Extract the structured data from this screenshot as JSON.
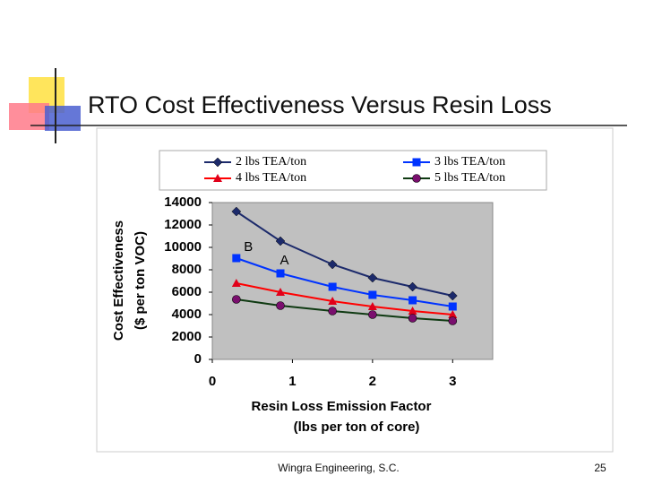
{
  "slide": {
    "title": "RTO Cost Effectiveness Versus Resin Loss",
    "footer": "Wingra Engineering, S.C.",
    "page_number": "25"
  },
  "chart_data": {
    "type": "line",
    "x_label": "Resin Loss Emission Factor",
    "x_label_sub": "(lbs per ton of core)",
    "y_label": "Cost Effectiveness",
    "y_label_sub": "($ per ton VOC)",
    "xlim": [
      0,
      3.5
    ],
    "xticks": [
      0,
      1,
      2,
      3
    ],
    "ylim": [
      0,
      14000
    ],
    "yticks": [
      0,
      2000,
      4000,
      6000,
      8000,
      10000,
      12000,
      14000
    ],
    "grid": false,
    "x": [
      0.3,
      0.85,
      1.5,
      2,
      2.5,
      3
    ],
    "series": [
      {
        "name": "2 lbs TEA/ton",
        "color": "#1c2a6b",
        "marker": "diamond",
        "marker_color": "#1c2a6b",
        "values": [
          13200,
          10560,
          8480,
          7280,
          6480,
          5680
        ]
      },
      {
        "name": "3 lbs TEA/ton",
        "color": "#0033ff",
        "marker": "square",
        "marker_color": "#0033ff",
        "values": [
          9040,
          7680,
          6480,
          5760,
          5280,
          4720
        ]
      },
      {
        "name": "4 lbs TEA/ton",
        "color": "#ff0000",
        "marker": "triangle",
        "marker_color": "#e0001a",
        "values": [
          6800,
          6000,
          5200,
          4720,
          4320,
          4000
        ]
      },
      {
        "name": "5 lbs TEA/ton",
        "color": "#0f3a12",
        "marker": "circle",
        "marker_color": "#7a0f6e",
        "values": [
          5360,
          4800,
          4320,
          4000,
          3680,
          3440
        ]
      }
    ],
    "annotations": [
      {
        "text": "B",
        "x": 0.45,
        "y": 10000
      },
      {
        "text": "A",
        "x": 0.9,
        "y": 8800
      }
    ]
  }
}
